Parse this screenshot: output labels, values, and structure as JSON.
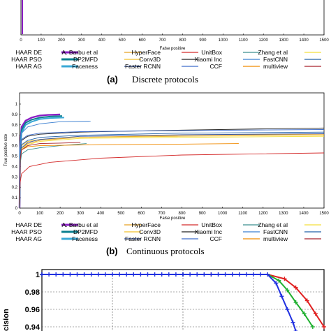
{
  "legend_labels": [
    "HAAR DE",
    "HAAR PSO",
    "HAAR AG",
    "A. Barbu et al",
    "DP2MFD",
    "Faceness",
    "HyperFace",
    "Conv3D",
    "Faster RCNN",
    "UnitBox",
    "Xiaomi Inc",
    "CCF",
    "Zhang et al",
    "FastCNN",
    "multiview"
  ],
  "legend_colors": [
    "#8b1ec4",
    "#0b7f8f",
    "#3aa8d6",
    "#e8a020",
    "#f2c02e",
    "#2f4f9f",
    "#d42a2a",
    "#202020",
    "#3e6cc9",
    "#3a8f8f",
    "#3b7fd0",
    "#f08a00",
    "#f4df3a",
    "#2060a8",
    "#a8202a"
  ],
  "panel_a": {
    "caption_label": "(a)",
    "caption_text": "Discrete protocols",
    "chart_data": {
      "type": "line",
      "xlabel": "False positive",
      "xlim": [
        0,
        1500
      ],
      "xticks": [
        "0",
        "100",
        "200",
        "300",
        "400",
        "500",
        "600",
        "700",
        "800",
        "900",
        "1000",
        "1100",
        "1200",
        "1300",
        "1400",
        "1500"
      ]
    }
  },
  "panel_b": {
    "caption_label": "(b)",
    "caption_text": "Continuous protocols",
    "chart_data": {
      "type": "line",
      "xlabel": "False positive",
      "ylabel": "True positive rate",
      "xlim": [
        0,
        1500
      ],
      "ylim": [
        0,
        1
      ],
      "xticks": [
        "0",
        "100",
        "200",
        "300",
        "400",
        "500",
        "600",
        "700",
        "800",
        "900",
        "1000",
        "1100",
        "1200",
        "1300",
        "1400",
        "1500"
      ],
      "yticks": [
        "0",
        "0.1",
        "0.2",
        "0.3",
        "0.4",
        "0.5",
        "0.6",
        "0.7",
        "0.8",
        "0.9",
        "1"
      ],
      "series": [
        {
          "name": "HAAR DE",
          "points": [
            [
              0,
              0
            ],
            [
              3,
              0.6
            ],
            [
              10,
              0.78
            ],
            [
              30,
              0.84
            ],
            [
              60,
              0.87
            ],
            [
              100,
              0.89
            ],
            [
              140,
              0.895
            ],
            [
              180,
              0.898
            ],
            [
              200,
              0.9
            ]
          ]
        },
        {
          "name": "HAAR PSO",
          "points": [
            [
              0,
              0
            ],
            [
              3,
              0.58
            ],
            [
              10,
              0.75
            ],
            [
              30,
              0.82
            ],
            [
              60,
              0.85
            ],
            [
              100,
              0.87
            ],
            [
              150,
              0.88
            ],
            [
              210,
              0.885
            ]
          ]
        },
        {
          "name": "HAAR AG",
          "points": [
            [
              0,
              0
            ],
            [
              3,
              0.57
            ],
            [
              10,
              0.72
            ],
            [
              30,
              0.8
            ],
            [
              60,
              0.83
            ],
            [
              100,
              0.855
            ],
            [
              150,
              0.865
            ],
            [
              220,
              0.87
            ]
          ]
        },
        {
          "name": "A. Barbu et al",
          "points": [
            [
              0,
              0
            ],
            [
              3,
              0.45
            ],
            [
              10,
              0.57
            ],
            [
              40,
              0.62
            ],
            [
              100,
              0.65
            ],
            [
              300,
              0.68
            ],
            [
              800,
              0.7
            ],
            [
              1500,
              0.71
            ]
          ]
        },
        {
          "name": "DP2MFD",
          "points": [
            [
              0,
              0
            ],
            [
              3,
              0.5
            ],
            [
              10,
              0.6
            ],
            [
              40,
              0.64
            ],
            [
              100,
              0.66
            ],
            [
              300,
              0.68
            ],
            [
              800,
              0.69
            ],
            [
              1500,
              0.7
            ]
          ]
        },
        {
          "name": "Faceness",
          "points": [
            [
              0,
              0
            ],
            [
              3,
              0.46
            ],
            [
              10,
              0.58
            ],
            [
              40,
              0.63
            ],
            [
              100,
              0.66
            ],
            [
              300,
              0.69
            ],
            [
              800,
              0.705
            ],
            [
              1500,
              0.715
            ]
          ]
        },
        {
          "name": "HyperFace",
          "points": [
            [
              0,
              0
            ],
            [
              3,
              0.25
            ],
            [
              10,
              0.33
            ],
            [
              50,
              0.4
            ],
            [
              150,
              0.44
            ],
            [
              400,
              0.48
            ],
            [
              800,
              0.51
            ],
            [
              1500,
              0.53
            ]
          ]
        },
        {
          "name": "Conv3D",
          "points": [
            [
              0,
              0
            ],
            [
              3,
              0.55
            ],
            [
              10,
              0.65
            ],
            [
              40,
              0.69
            ],
            [
              100,
              0.71
            ],
            [
              300,
              0.73
            ],
            [
              800,
              0.75
            ],
            [
              1500,
              0.77
            ]
          ]
        },
        {
          "name": "Faster RCNN",
          "points": [
            [
              0,
              0
            ],
            [
              3,
              0.55
            ],
            [
              10,
              0.66
            ],
            [
              40,
              0.7
            ],
            [
              100,
              0.72
            ],
            [
              300,
              0.735
            ],
            [
              800,
              0.745
            ],
            [
              1500,
              0.755
            ]
          ]
        },
        {
          "name": "UnitBox",
          "points": [
            [
              0,
              0
            ],
            [
              3,
              0.42
            ],
            [
              10,
              0.52
            ],
            [
              40,
              0.56
            ],
            [
              100,
              0.58
            ],
            [
              200,
              0.6
            ],
            [
              330,
              0.62
            ]
          ]
        },
        {
          "name": "Xiaomi Inc",
          "points": [
            [
              0,
              0
            ],
            [
              3,
              0.6
            ],
            [
              10,
              0.72
            ],
            [
              40,
              0.78
            ],
            [
              100,
              0.81
            ],
            [
              200,
              0.83
            ],
            [
              350,
              0.835
            ]
          ]
        },
        {
          "name": "CCF",
          "points": [
            [
              0,
              0
            ],
            [
              3,
              0.48
            ],
            [
              10,
              0.56
            ],
            [
              40,
              0.59
            ],
            [
              100,
              0.6
            ],
            [
              400,
              0.61
            ],
            [
              800,
              0.615
            ],
            [
              1080,
              0.62
            ]
          ]
        },
        {
          "name": "Zhang et al",
          "points": [
            [
              0,
              0
            ],
            [
              3,
              0.47
            ],
            [
              10,
              0.57
            ],
            [
              40,
              0.61
            ],
            [
              100,
              0.64
            ],
            [
              300,
              0.67
            ],
            [
              800,
              0.68
            ],
            [
              1500,
              0.69
            ]
          ]
        },
        {
          "name": "FastCNN",
          "points": [
            [
              0,
              0
            ],
            [
              3,
              0.5
            ],
            [
              10,
              0.61
            ],
            [
              40,
              0.65
            ],
            [
              100,
              0.68
            ],
            [
              300,
              0.7
            ],
            [
              800,
              0.72
            ],
            [
              1500,
              0.73
            ]
          ]
        },
        {
          "name": "multiview",
          "points": [
            [
              0,
              0
            ],
            [
              3,
              0.46
            ],
            [
              10,
              0.56
            ],
            [
              40,
              0.6
            ],
            [
              100,
              0.62
            ],
            [
              200,
              0.625
            ],
            [
              300,
              0.63
            ]
          ]
        }
      ]
    }
  },
  "panel_c": {
    "chart_data": {
      "type": "line",
      "ylabel_fragment": "cision",
      "ylim": [
        0.935,
        1.0
      ],
      "yticks": [
        "1",
        "0.98",
        "0.96",
        "0.94"
      ],
      "series": [
        {
          "name": "red",
          "points": [
            [
              0,
              1
            ],
            [
              0.5,
              1
            ],
            [
              0.6,
              1
            ],
            [
              0.8,
              1
            ],
            [
              0.86,
              0.995
            ],
            [
              0.9,
              0.985
            ],
            [
              0.94,
              0.97
            ],
            [
              0.97,
              0.955
            ],
            [
              1.0,
              0.94
            ]
          ]
        },
        {
          "name": "green",
          "points": [
            [
              0,
              1
            ],
            [
              0.5,
              1
            ],
            [
              0.8,
              1
            ],
            [
              0.84,
              0.993
            ],
            [
              0.87,
              0.982
            ],
            [
              0.9,
              0.968
            ],
            [
              0.93,
              0.955
            ],
            [
              0.96,
              0.94
            ]
          ]
        },
        {
          "name": "blue",
          "points": [
            [
              0,
              1
            ],
            [
              0.5,
              1
            ],
            [
              0.8,
              1
            ],
            [
              0.83,
              0.99
            ],
            [
              0.85,
              0.975
            ],
            [
              0.87,
              0.96
            ],
            [
              0.89,
              0.945
            ],
            [
              0.9,
              0.935
            ]
          ]
        }
      ]
    }
  }
}
